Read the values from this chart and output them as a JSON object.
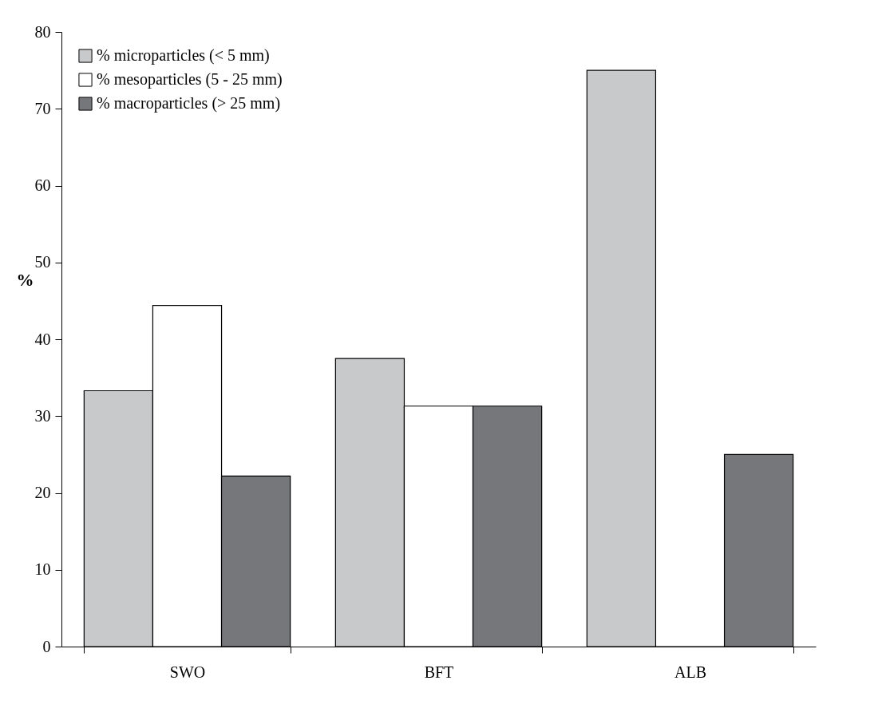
{
  "chart_data": {
    "type": "bar",
    "ylabel": "%",
    "categories": [
      "SWO",
      "BFT",
      "ALB"
    ],
    "series": [
      {
        "name": "% microparticles  (< 5 mm)",
        "color": "#c8c9cb",
        "values": [
          33.3,
          37.5,
          75
        ]
      },
      {
        "name": "% mesoparticles  (5 - 25 mm)",
        "color": "#ffffff",
        "values": [
          44.4,
          31.3,
          0
        ]
      },
      {
        "name": "% macroparticles  (> 25 mm)",
        "color": "#76777b",
        "values": [
          22.2,
          31.3,
          25
        ]
      }
    ],
    "ylim": [
      0,
      80
    ],
    "yticks": [
      0,
      10,
      20,
      30,
      40,
      50,
      60,
      70,
      80
    ],
    "grid": false,
    "legend": "top left"
  }
}
